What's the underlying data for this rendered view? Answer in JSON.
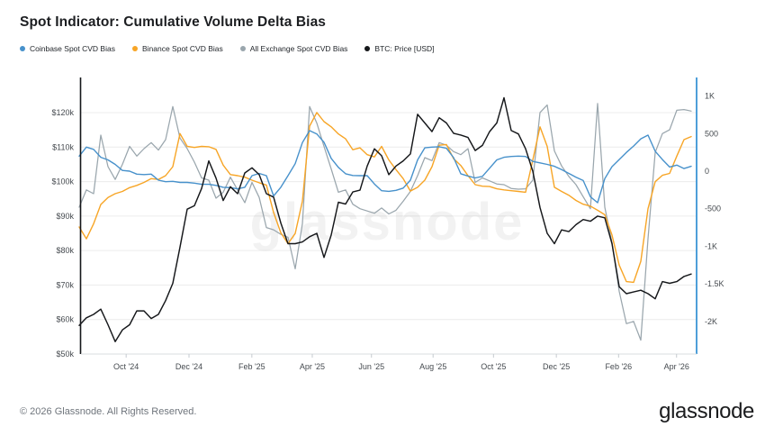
{
  "header": {
    "title": "Spot Indicator: Cumulative Volume Delta Bias"
  },
  "legend": {
    "items": [
      {
        "id": "coinbase",
        "label": "Coinbase Spot CVD Bias",
        "color": "#4791cb"
      },
      {
        "id": "binance",
        "label": "Binance Spot CVD Bias",
        "color": "#f7a526"
      },
      {
        "id": "all-exchange",
        "label": "All Exchange Spot CVD Bias",
        "color": "#9aa6ad"
      },
      {
        "id": "btc-price",
        "label": "BTC: Price [USD]",
        "color": "#15171a"
      }
    ]
  },
  "watermark": "glassnode",
  "footer": {
    "copyright": "© 2026 Glassnode. All Rights Reserved.",
    "logo": "glassnode"
  },
  "chart_data": {
    "type": "line",
    "title": "Spot Indicator: Cumulative Volume Delta Bias",
    "grid": "horizontal",
    "legend_position": "top-left",
    "x_axis": {
      "ticks": [
        {
          "label": "Oct '24",
          "f": 0.074
        },
        {
          "label": "Dec '24",
          "f": 0.177
        },
        {
          "label": "Feb '25",
          "f": 0.28
        },
        {
          "label": "Apr '25",
          "f": 0.379
        },
        {
          "label": "Jun '25",
          "f": 0.476
        },
        {
          "label": "Aug '25",
          "f": 0.577
        },
        {
          "label": "Oct '25",
          "f": 0.676
        },
        {
          "label": "Dec '25",
          "f": 0.779
        },
        {
          "label": "Feb '26",
          "f": 0.881
        },
        {
          "label": "Apr '26",
          "f": 0.976
        }
      ]
    },
    "left_axis": {
      "unit": "USD (thousands)",
      "min": 50,
      "max": 120,
      "ticks": [
        {
          "label": "$120k",
          "value": 120
        },
        {
          "label": "$110k",
          "value": 110
        },
        {
          "label": "$100k",
          "value": 100
        },
        {
          "label": "$90k",
          "value": 90
        },
        {
          "label": "$80k",
          "value": 80
        },
        {
          "label": "$70k",
          "value": 70
        },
        {
          "label": "$60k",
          "value": 60
        },
        {
          "label": "$50k",
          "value": 50
        }
      ]
    },
    "right_axis": {
      "unit": "CVD bias",
      "min": -2000,
      "max": 1000,
      "ticks": [
        {
          "label": "1K",
          "value": 1000
        },
        {
          "label": "500",
          "value": 500
        },
        {
          "label": "0",
          "value": 0
        },
        {
          "label": "-500",
          "value": -500
        },
        {
          "label": "-1K",
          "value": -1000
        },
        {
          "label": "-1.5K",
          "value": -1500
        },
        {
          "label": "-2K",
          "value": -2000
        }
      ]
    },
    "sampling": {
      "f0": -0.003,
      "df": 0.0118,
      "points": 86
    },
    "series": [
      {
        "id": "all-exchange",
        "name": "All Exchange Spot CVD Bias",
        "axis": "right",
        "color": "#9aa6ad",
        "width": 1.25,
        "values": [
          -480,
          -250,
          -300,
          480,
          60,
          -110,
          90,
          330,
          200,
          300,
          380,
          280,
          420,
          860,
          440,
          300,
          120,
          -90,
          -120,
          -360,
          -280,
          -80,
          -250,
          -420,
          -150,
          -350,
          -750,
          -780,
          -840,
          -880,
          -1300,
          -700,
          860,
          640,
          330,
          30,
          -280,
          -250,
          -440,
          -500,
          -530,
          -560,
          -490,
          -570,
          -520,
          -400,
          -270,
          -60,
          180,
          140,
          380,
          345,
          260,
          220,
          300,
          -150,
          -90,
          -130,
          -170,
          -180,
          -230,
          -240,
          -235,
          -120,
          780,
          880,
          270,
          70,
          -70,
          -180,
          -340,
          -500,
          900,
          -480,
          -950,
          -1600,
          -2030,
          -2000,
          -2250,
          -900,
          250,
          500,
          550,
          810,
          820,
          800
        ]
      },
      {
        "id": "binance",
        "name": "Binance Spot CVD Bias",
        "axis": "right",
        "color": "#f7a526",
        "width": 1.4,
        "values": [
          -744,
          -900,
          -700,
          -444,
          -350,
          -300,
          -270,
          -220,
          -190,
          -150,
          -100,
          -110,
          -60,
          60,
          500,
          330,
          315,
          330,
          325,
          290,
          80,
          -45,
          -60,
          -80,
          -120,
          -155,
          -185,
          -550,
          -820,
          -965,
          -830,
          -400,
          600,
          780,
          660,
          590,
          495,
          430,
          285,
          310,
          220,
          190,
          330,
          150,
          20,
          -100,
          -265,
          -215,
          -120,
          60,
          345,
          355,
          165,
          75,
          -60,
          -180,
          -200,
          -205,
          -235,
          -250,
          -260,
          -270,
          -280,
          150,
          590,
          330,
          -215,
          -270,
          -320,
          -390,
          -440,
          -465,
          -520,
          -580,
          -850,
          -1250,
          -1470,
          -1480,
          -1200,
          -500,
          -140,
          -55,
          -30,
          200,
          420,
          460
        ]
      },
      {
        "id": "coinbase",
        "name": "Coinbase Spot CVD Bias",
        "axis": "right",
        "color": "#4791cb",
        "width": 1.4,
        "values": [
          200,
          320,
          290,
          185,
          150,
          90,
          10,
          0,
          -40,
          -45,
          -40,
          -120,
          -140,
          -135,
          -150,
          -150,
          -160,
          -175,
          -175,
          -190,
          -215,
          -220,
          -235,
          -215,
          -60,
          -30,
          -60,
          -330,
          -215,
          -60,
          100,
          380,
          540,
          495,
          385,
          170,
          50,
          -35,
          -58,
          -60,
          -60,
          -170,
          -260,
          -268,
          -255,
          -225,
          -120,
          150,
          310,
          320,
          325,
          305,
          180,
          -35,
          -65,
          -90,
          -70,
          40,
          150,
          185,
          195,
          200,
          195,
          130,
          110,
          90,
          65,
          20,
          -30,
          -80,
          -125,
          -340,
          -420,
          -100,
          60,
          155,
          250,
          335,
          430,
          480,
          265,
          155,
          55,
          80,
          35,
          65
        ]
      },
      {
        "id": "btc-price",
        "name": "BTC: Price [USD]",
        "axis": "left",
        "unit": "kUSD",
        "color": "#15171a",
        "width": 1.45,
        "values": [
          58.3,
          60.5,
          61.5,
          63,
          58.5,
          53.6,
          57,
          58.5,
          62.5,
          62.5,
          60.3,
          61.5,
          65.5,
          70.5,
          81,
          92,
          93,
          98,
          106,
          101,
          94.5,
          98.5,
          96.5,
          102.5,
          104,
          102,
          96.5,
          95.5,
          88,
          82,
          82,
          82.5,
          84,
          85,
          78,
          84.5,
          94,
          93.5,
          97,
          97.5,
          104.5,
          109.5,
          107.5,
          102,
          104.5,
          106,
          108,
          119.5,
          117,
          114.5,
          118.5,
          117,
          114,
          113.5,
          112.8,
          109,
          110.5,
          114.5,
          117,
          124.3,
          114.8,
          113.8,
          109.5,
          103,
          92.5,
          85,
          82,
          86,
          85.5,
          87.5,
          89,
          88.5,
          90,
          89.5,
          82,
          69.5,
          67.5,
          68,
          68.5,
          67.5,
          66,
          71,
          70.5,
          71,
          72.5,
          73.2
        ]
      }
    ]
  }
}
